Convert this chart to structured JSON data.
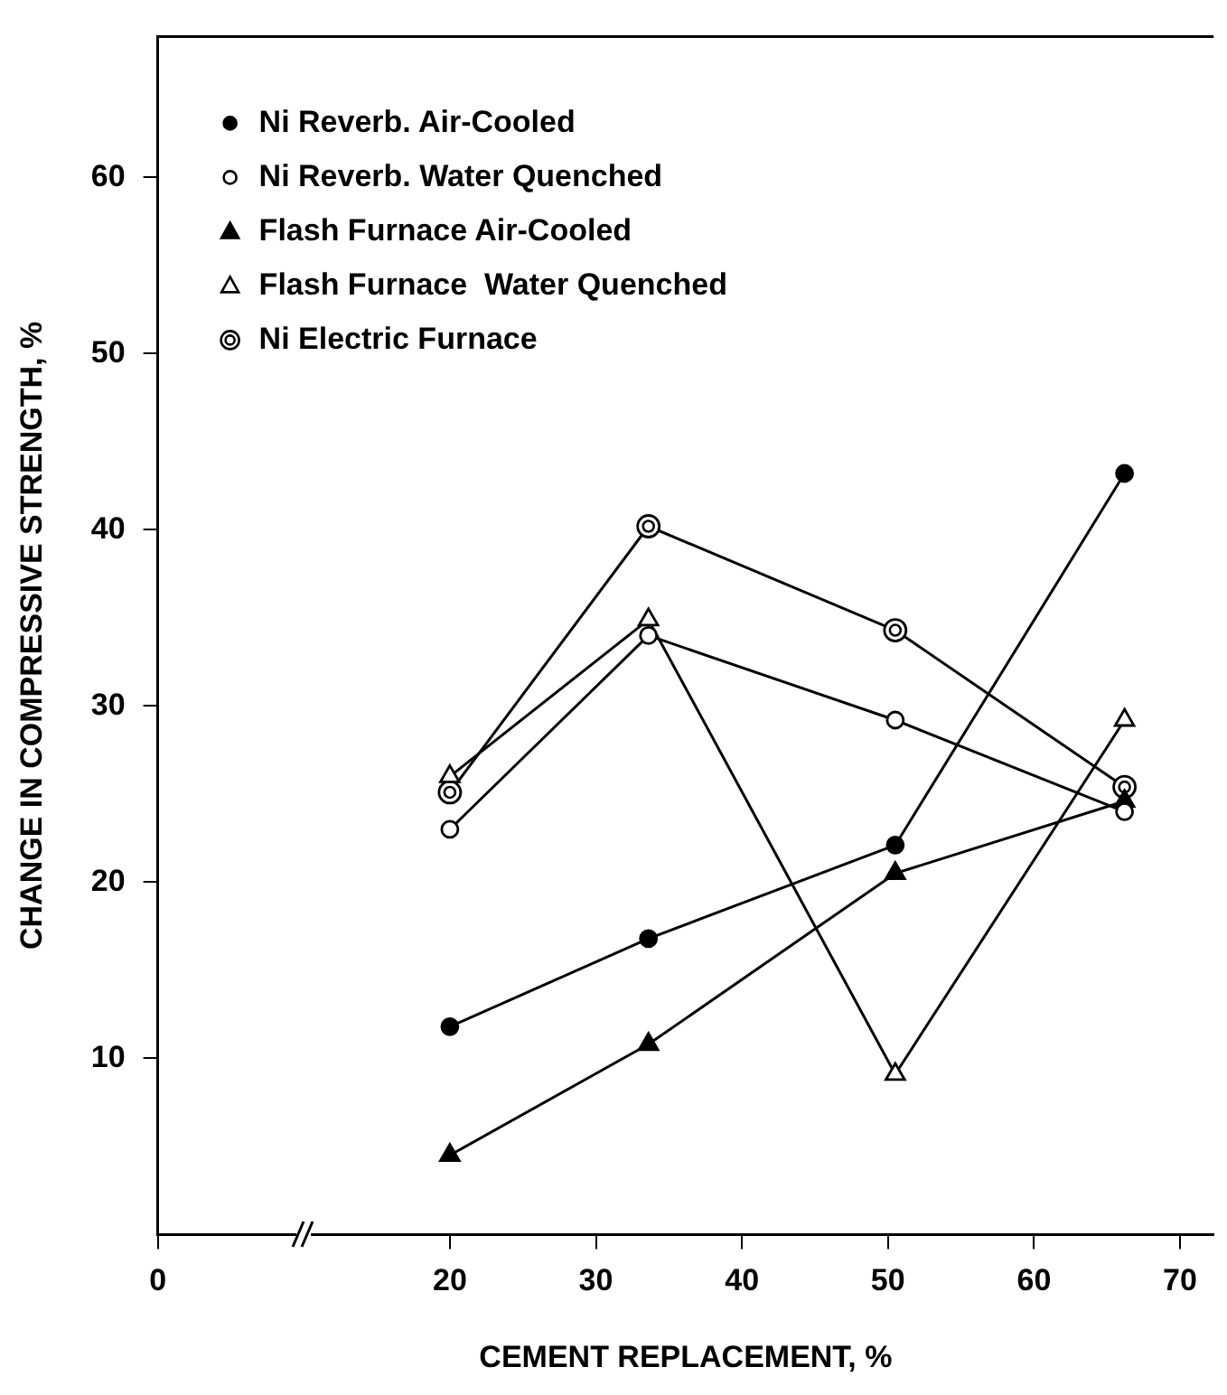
{
  "chart_data": {
    "type": "line",
    "xlabel": "CEMENT REPLACEMENT, %",
    "ylabel": "CHANGE IN COMPRESSIVE STRENGTH, %",
    "x": [
      20,
      33.6,
      50.5,
      66.2
    ],
    "xlim": [
      0,
      72.3
    ],
    "xticks": [
      0,
      20,
      30,
      40,
      50,
      60,
      70
    ],
    "ylim": [
      0,
      68
    ],
    "yticks": [
      10,
      20,
      30,
      40,
      50,
      60
    ],
    "grid": false,
    "legend": "top left",
    "line_style": "solid",
    "series": [
      {
        "name": "Ni Reverb. Air-Cooled",
        "color": "#000000",
        "marker": "circle",
        "values": [
          11.8,
          16.8,
          22.1,
          43.2
        ]
      },
      {
        "name": "Ni Reverb. Water Quenched",
        "color": "#000000",
        "marker": "circle",
        "values": [
          23,
          34,
          29.2,
          24
        ]
      },
      {
        "name": "Flash Furnace Air-Cooled",
        "color": "#000000",
        "marker": "triangle",
        "values": [
          4.5,
          10.8,
          20.5,
          24.6
        ]
      },
      {
        "name": "Flash Furnace  Water Quenched",
        "color": "#000000",
        "marker": "triangle",
        "values": [
          26,
          34.9,
          9.1,
          29.2
        ]
      },
      {
        "name": "Ni Electric Furnace",
        "color": "#000000",
        "marker": "circle",
        "values": [
          25.1,
          40.2,
          34.3,
          25.4
        ]
      }
    ]
  }
}
